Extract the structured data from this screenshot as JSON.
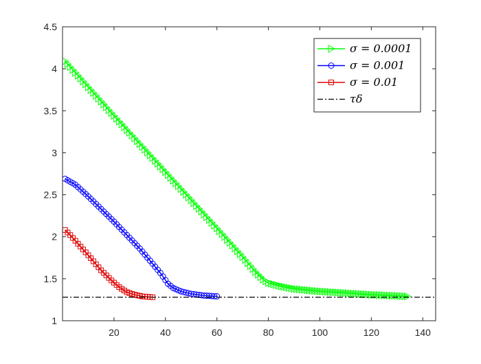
{
  "chart_data": {
    "type": "line",
    "title": "",
    "xlabel": "",
    "ylabel": "",
    "xlim": [
      0,
      145
    ],
    "ylim": [
      1,
      4.5
    ],
    "xticks": [
      20,
      40,
      60,
      80,
      100,
      120,
      140
    ],
    "yticks": [
      1,
      1.5,
      2,
      2.5,
      3,
      3.5,
      4,
      4.5
    ],
    "xtick_labels": [
      "20",
      "40",
      "60",
      "80",
      "100",
      "120",
      "140"
    ],
    "ytick_labels": [
      "1",
      "1.5",
      "2",
      "2.5",
      "3",
      "3.5",
      "4",
      "4.5"
    ],
    "grid": false,
    "legend_position": "top-right",
    "series": [
      {
        "name": "σ = 0.0001",
        "label_symbol": "σ",
        "label_value": "= 0.0001",
        "color": "#00ff00",
        "marker": "triangle-right",
        "breakpoints": [
          [
            1,
            4.09
          ],
          [
            8,
            3.85
          ],
          [
            20,
            3.44
          ],
          [
            40,
            2.77
          ],
          [
            60,
            2.1
          ],
          [
            70,
            1.76
          ],
          [
            75,
            1.58
          ],
          [
            78,
            1.49
          ],
          [
            80,
            1.45
          ],
          [
            85,
            1.41
          ],
          [
            90,
            1.38
          ],
          [
            100,
            1.35
          ],
          [
            110,
            1.33
          ],
          [
            120,
            1.31
          ],
          [
            134,
            1.29
          ]
        ]
      },
      {
        "name": "σ = 0.001",
        "label_symbol": "σ",
        "label_value": "= 0.001",
        "color": "#0000ff",
        "marker": "circle",
        "breakpoints": [
          [
            1,
            2.69
          ],
          [
            5,
            2.62
          ],
          [
            10,
            2.48
          ],
          [
            20,
            2.18
          ],
          [
            30,
            1.86
          ],
          [
            38,
            1.57
          ],
          [
            41,
            1.44
          ],
          [
            43,
            1.39
          ],
          [
            46,
            1.35
          ],
          [
            50,
            1.32
          ],
          [
            55,
            1.3
          ],
          [
            60,
            1.29
          ]
        ]
      },
      {
        "name": "σ = 0.01",
        "label_symbol": "σ",
        "label_value": "= 0.01",
        "color": "#dd0000",
        "marker": "square",
        "breakpoints": [
          [
            1,
            2.08
          ],
          [
            3,
            2.02
          ],
          [
            10,
            1.78
          ],
          [
            15,
            1.6
          ],
          [
            19,
            1.48
          ],
          [
            22,
            1.4
          ],
          [
            25,
            1.34
          ],
          [
            28,
            1.31
          ],
          [
            31,
            1.29
          ],
          [
            35,
            1.28
          ]
        ]
      },
      {
        "name": "τδ",
        "label_symbol": "τδ",
        "label_value": "",
        "color": "#000000",
        "marker": "none",
        "style": "dash-dot",
        "y": 1.28
      }
    ]
  }
}
